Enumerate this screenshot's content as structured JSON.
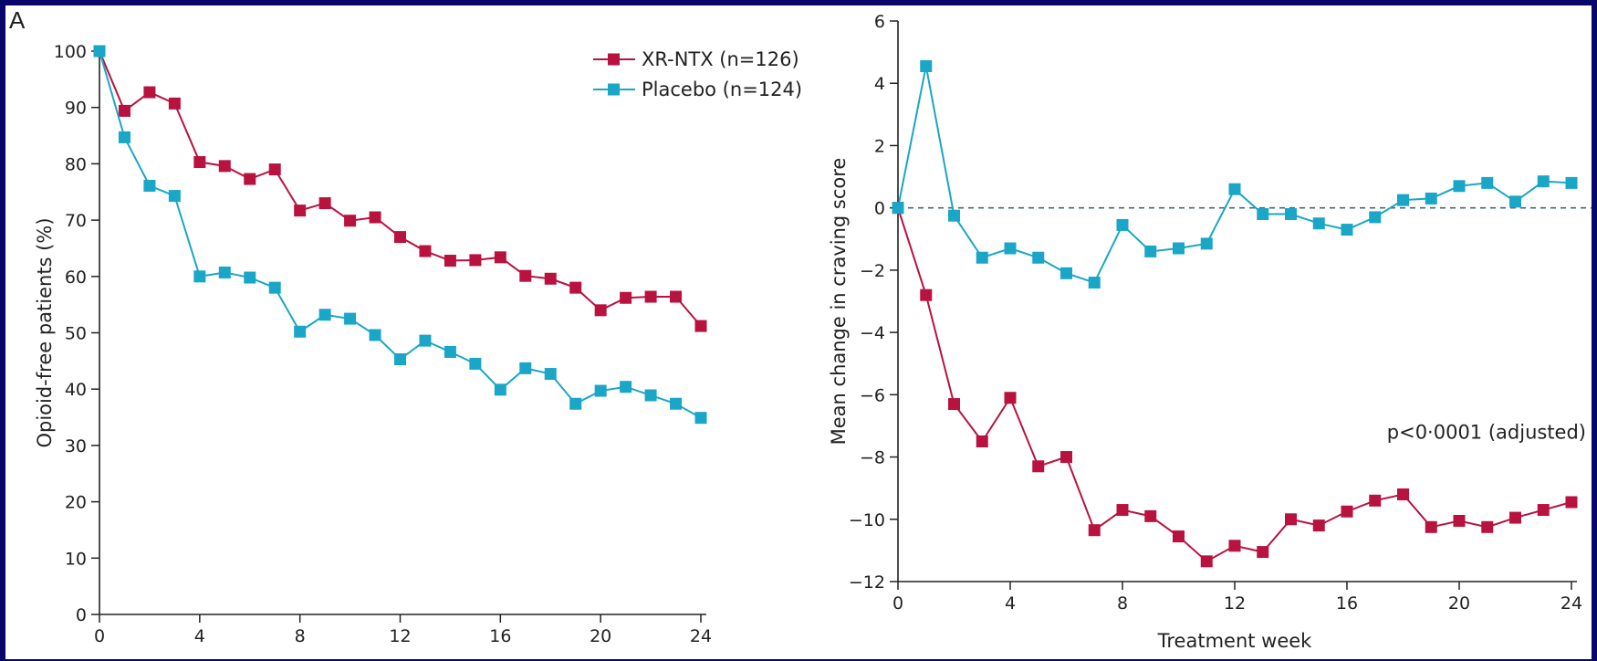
{
  "panel_label": "A",
  "colors": {
    "xrntx": "#b8123f",
    "placebo": "#1aa6c6",
    "axis": "#222222",
    "zero_line": "#4a6578"
  },
  "chart_data": [
    {
      "type": "line",
      "ylabel": "Opioid-free patients (%)",
      "xlabel": "",
      "xlim": [
        0,
        24
      ],
      "ylim": [
        0,
        100
      ],
      "x_ticks": [
        0,
        4,
        8,
        12,
        16,
        20,
        24
      ],
      "y_ticks": [
        0,
        10,
        20,
        30,
        40,
        50,
        60,
        70,
        80,
        90,
        100
      ],
      "legend": "top-right",
      "grid": false,
      "x": [
        0,
        1,
        2,
        3,
        4,
        5,
        6,
        7,
        8,
        9,
        10,
        11,
        12,
        13,
        14,
        15,
        16,
        17,
        18,
        19,
        20,
        21,
        22,
        23,
        24
      ],
      "series": [
        {
          "name": "XR-NTX (n=126)",
          "color_key": "xrntx",
          "values": [
            100,
            89.4,
            92.7,
            90.7,
            80.3,
            79.6,
            77.3,
            79.0,
            71.7,
            73.0,
            69.9,
            70.5,
            67.0,
            64.5,
            62.8,
            62.9,
            63.4,
            60.1,
            59.6,
            58.0,
            54.0,
            56.2,
            56.4,
            56.4,
            51.2
          ]
        },
        {
          "name": "Placebo (n=124)",
          "color_key": "placebo",
          "values": [
            100,
            84.7,
            76.1,
            74.3,
            60.0,
            60.7,
            59.8,
            58.0,
            50.2,
            53.2,
            52.5,
            49.6,
            45.3,
            48.6,
            46.6,
            44.5,
            39.9,
            43.7,
            42.7,
            37.4,
            39.7,
            40.4,
            38.9,
            37.4,
            34.9
          ]
        }
      ]
    },
    {
      "type": "line",
      "ylabel": "Mean change in craving score",
      "xlabel": "Treatment week",
      "xlim": [
        0,
        24
      ],
      "ylim": [
        -12,
        6
      ],
      "x_ticks": [
        0,
        4,
        8,
        12,
        16,
        20,
        24
      ],
      "y_ticks": [
        6,
        4,
        2,
        0,
        -2,
        -4,
        -6,
        -8,
        -10,
        -12
      ],
      "y_tick_labels": [
        "6",
        "4",
        "2",
        "0",
        "−2",
        "−4",
        "−6",
        "−8",
        "−10",
        "−12"
      ],
      "reference_line": 0,
      "annotation": "p<0·0001 (adjusted)",
      "grid": false,
      "x": [
        0,
        1,
        2,
        3,
        4,
        5,
        6,
        7,
        8,
        9,
        10,
        11,
        12,
        13,
        14,
        15,
        16,
        17,
        18,
        19,
        20,
        21,
        22,
        23,
        24
      ],
      "series": [
        {
          "color_key": "xrntx",
          "values": [
            0,
            -2.8,
            -6.3,
            -7.5,
            -6.1,
            -8.3,
            -8.0,
            -10.35,
            -9.7,
            -9.9,
            -10.55,
            -11.35,
            -10.85,
            -11.05,
            -10.0,
            -10.2,
            -9.75,
            -9.4,
            -9.2,
            -10.25,
            -10.05,
            -10.25,
            -9.95,
            -9.7,
            -9.45
          ]
        },
        {
          "color_key": "placebo",
          "values": [
            0,
            4.55,
            -0.25,
            -1.6,
            -1.3,
            -1.6,
            -2.1,
            -2.4,
            -0.55,
            -1.4,
            -1.3,
            -1.15,
            0.6,
            -0.2,
            -0.2,
            -0.5,
            -0.7,
            -0.3,
            0.25,
            0.3,
            0.7,
            0.8,
            0.2,
            0.85,
            0.8
          ]
        }
      ]
    }
  ]
}
